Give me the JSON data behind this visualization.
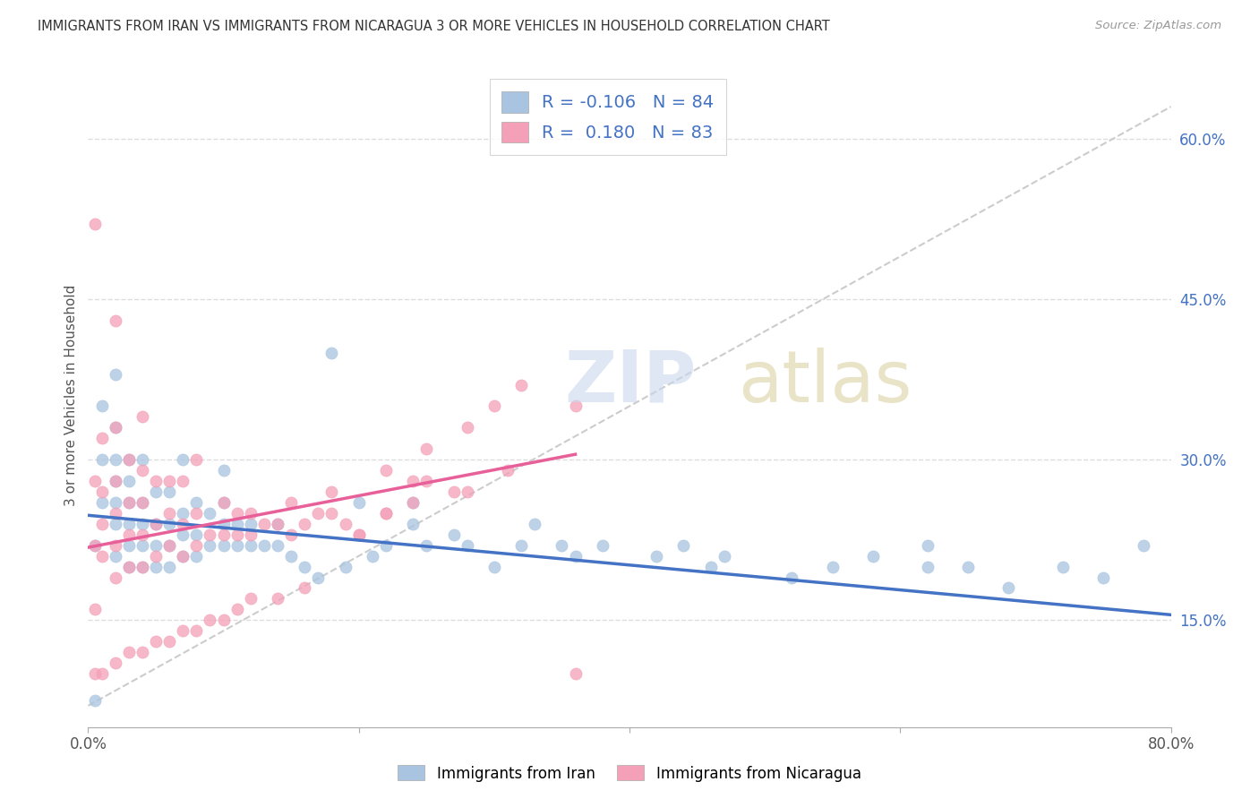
{
  "title": "IMMIGRANTS FROM IRAN VS IMMIGRANTS FROM NICARAGUA 3 OR MORE VEHICLES IN HOUSEHOLD CORRELATION CHART",
  "source": "Source: ZipAtlas.com",
  "ylabel": "3 or more Vehicles in Household",
  "xmin": 0.0,
  "xmax": 0.8,
  "ymin": 0.05,
  "ymax": 0.65,
  "x_ticks": [
    0.0,
    0.2,
    0.4,
    0.6,
    0.8
  ],
  "x_tick_labels": [
    "0.0%",
    "",
    "",
    "",
    "80.0%"
  ],
  "y_ticks_right": [
    0.15,
    0.3,
    0.45,
    0.6
  ],
  "y_tick_labels_right": [
    "15.0%",
    "30.0%",
    "45.0%",
    "60.0%"
  ],
  "legend_iran_r": "-0.106",
  "legend_iran_n": "84",
  "legend_nicaragua_r": "0.180",
  "legend_nicaragua_n": "83",
  "iran_color": "#a8c4e0",
  "nicaragua_color": "#f4a0b8",
  "iran_line_color": "#4472c4",
  "nicaragua_line_color": "#e8609a",
  "iran_scatter_x": [
    0.005,
    0.01,
    0.01,
    0.01,
    0.02,
    0.02,
    0.02,
    0.02,
    0.02,
    0.02,
    0.02,
    0.03,
    0.03,
    0.03,
    0.03,
    0.03,
    0.03,
    0.04,
    0.04,
    0.04,
    0.04,
    0.04,
    0.05,
    0.05,
    0.05,
    0.05,
    0.06,
    0.06,
    0.06,
    0.06,
    0.07,
    0.07,
    0.07,
    0.07,
    0.08,
    0.08,
    0.08,
    0.09,
    0.09,
    0.1,
    0.1,
    0.1,
    0.1,
    0.11,
    0.11,
    0.12,
    0.12,
    0.13,
    0.14,
    0.14,
    0.15,
    0.16,
    0.17,
    0.18,
    0.19,
    0.2,
    0.21,
    0.22,
    0.24,
    0.24,
    0.25,
    0.27,
    0.28,
    0.3,
    0.32,
    0.33,
    0.35,
    0.36,
    0.38,
    0.42,
    0.44,
    0.46,
    0.47,
    0.52,
    0.55,
    0.58,
    0.62,
    0.65,
    0.68,
    0.72,
    0.75,
    0.78,
    0.62,
    0.005
  ],
  "iran_scatter_y": [
    0.22,
    0.26,
    0.3,
    0.35,
    0.21,
    0.24,
    0.26,
    0.28,
    0.3,
    0.33,
    0.38,
    0.2,
    0.22,
    0.24,
    0.26,
    0.28,
    0.3,
    0.2,
    0.22,
    0.24,
    0.26,
    0.3,
    0.2,
    0.22,
    0.24,
    0.27,
    0.2,
    0.22,
    0.24,
    0.27,
    0.21,
    0.23,
    0.25,
    0.3,
    0.21,
    0.23,
    0.26,
    0.22,
    0.25,
    0.22,
    0.24,
    0.26,
    0.29,
    0.22,
    0.24,
    0.22,
    0.24,
    0.22,
    0.22,
    0.24,
    0.21,
    0.2,
    0.19,
    0.4,
    0.2,
    0.26,
    0.21,
    0.22,
    0.24,
    0.26,
    0.22,
    0.23,
    0.22,
    0.2,
    0.22,
    0.24,
    0.22,
    0.21,
    0.22,
    0.21,
    0.22,
    0.2,
    0.21,
    0.19,
    0.2,
    0.21,
    0.2,
    0.2,
    0.18,
    0.2,
    0.19,
    0.22,
    0.22,
    0.075
  ],
  "nicaragua_scatter_x": [
    0.005,
    0.005,
    0.005,
    0.01,
    0.01,
    0.01,
    0.01,
    0.02,
    0.02,
    0.02,
    0.02,
    0.02,
    0.02,
    0.03,
    0.03,
    0.03,
    0.03,
    0.04,
    0.04,
    0.04,
    0.04,
    0.04,
    0.05,
    0.05,
    0.05,
    0.06,
    0.06,
    0.06,
    0.07,
    0.07,
    0.07,
    0.08,
    0.08,
    0.08,
    0.09,
    0.1,
    0.1,
    0.11,
    0.11,
    0.12,
    0.12,
    0.13,
    0.14,
    0.15,
    0.16,
    0.17,
    0.18,
    0.19,
    0.2,
    0.22,
    0.24,
    0.24,
    0.25,
    0.27,
    0.28,
    0.31,
    0.2,
    0.22,
    0.15,
    0.18,
    0.22,
    0.25,
    0.28,
    0.3,
    0.32,
    0.36,
    0.36,
    0.005,
    0.005,
    0.01,
    0.02,
    0.03,
    0.04,
    0.05,
    0.06,
    0.07,
    0.08,
    0.09,
    0.1,
    0.11,
    0.12,
    0.14,
    0.16
  ],
  "nicaragua_scatter_y": [
    0.22,
    0.28,
    0.52,
    0.21,
    0.24,
    0.27,
    0.32,
    0.19,
    0.22,
    0.25,
    0.28,
    0.33,
    0.43,
    0.2,
    0.23,
    0.26,
    0.3,
    0.2,
    0.23,
    0.26,
    0.29,
    0.34,
    0.21,
    0.24,
    0.28,
    0.22,
    0.25,
    0.28,
    0.21,
    0.24,
    0.28,
    0.22,
    0.25,
    0.3,
    0.23,
    0.23,
    0.26,
    0.23,
    0.25,
    0.23,
    0.25,
    0.24,
    0.24,
    0.23,
    0.24,
    0.25,
    0.25,
    0.24,
    0.23,
    0.25,
    0.26,
    0.28,
    0.28,
    0.27,
    0.27,
    0.29,
    0.23,
    0.25,
    0.26,
    0.27,
    0.29,
    0.31,
    0.33,
    0.35,
    0.37,
    0.35,
    0.1,
    0.16,
    0.1,
    0.1,
    0.11,
    0.12,
    0.12,
    0.13,
    0.13,
    0.14,
    0.14,
    0.15,
    0.15,
    0.16,
    0.17,
    0.17,
    0.18
  ]
}
